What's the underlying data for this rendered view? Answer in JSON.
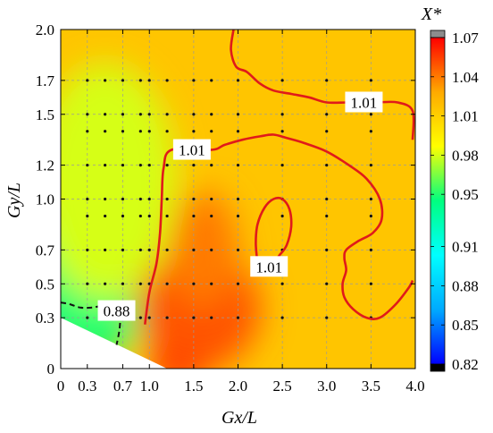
{
  "chart_data": {
    "type": "heatmap",
    "title": "",
    "xlabel": "Gx/L",
    "ylabel": "Gy/L",
    "xlim": [
      0,
      4.0
    ],
    "ylim": [
      0,
      2.0
    ],
    "x_ticks": [
      "0",
      "0.3",
      "0.7",
      "1.0",
      "1.5",
      "2.0",
      "2.5",
      "3.0",
      "3.5",
      "4.0"
    ],
    "x_tick_values": [
      0,
      0.3,
      0.7,
      1.0,
      1.5,
      2.0,
      2.5,
      3.0,
      3.5,
      4.0
    ],
    "y_ticks": [
      "0",
      "0.3",
      "0.5",
      "0.7",
      "1.0",
      "1.2",
      "1.5",
      "1.7",
      "2.0"
    ],
    "y_tick_values": [
      0,
      0.3,
      0.5,
      0.7,
      1.0,
      1.2,
      1.5,
      1.7,
      2.0
    ],
    "colorbar": {
      "label": "X*",
      "ticks": [
        "0.82",
        "0.85",
        "0.88",
        "0.91",
        "0.95",
        "0.98",
        "1.01",
        "1.04",
        "1.07"
      ],
      "tick_values": [
        0.82,
        0.85,
        0.88,
        0.91,
        0.95,
        0.98,
        1.01,
        1.04,
        1.07
      ],
      "colors": {
        "min_cap": "#000000",
        "max_cap": "#8c8c8c",
        "c0": "#0000ff",
        "c1": "#00aaff",
        "c2": "#00ffff",
        "c3": "#00ff80",
        "c4": "#ffff00",
        "c5": "#ffaa00",
        "c6": "#ff0000"
      }
    },
    "sample_grid": {
      "x": [
        0.3,
        0.5,
        0.7,
        0.9,
        1.0,
        1.2,
        1.5,
        1.7,
        2.0,
        2.5,
        3.0,
        3.5
      ],
      "y": [
        0.3,
        0.5,
        0.7,
        0.9,
        1.0,
        1.2,
        1.4,
        1.5,
        1.7
      ]
    },
    "contour_labels": [
      {
        "text": "1.01",
        "x": 3.42,
        "y": 1.57
      },
      {
        "text": "1.01",
        "x": 1.48,
        "y": 1.29
      },
      {
        "text": "1.01",
        "x": 2.35,
        "y": 0.6
      },
      {
        "text": "0.88",
        "x": 0.63,
        "y": 0.34
      }
    ],
    "contours": [
      {
        "level": 1.01,
        "style": "solid",
        "color": "#e01a1a",
        "points": [
          [
            1.95,
            2.0
          ],
          [
            1.92,
            1.88
          ],
          [
            1.98,
            1.78
          ],
          [
            2.1,
            1.75
          ],
          [
            2.25,
            1.68
          ],
          [
            2.4,
            1.64
          ],
          [
            2.6,
            1.62
          ],
          [
            2.8,
            1.6
          ],
          [
            3.0,
            1.57
          ],
          [
            3.25,
            1.57
          ],
          [
            3.55,
            1.57
          ],
          [
            3.8,
            1.57
          ],
          [
            3.97,
            1.52
          ],
          [
            3.97,
            1.35
          ]
        ]
      },
      {
        "level": 1.01,
        "style": "solid",
        "color": "#e01a1a",
        "points": [
          [
            0.95,
            0.26
          ],
          [
            1.0,
            0.45
          ],
          [
            1.08,
            0.62
          ],
          [
            1.12,
            0.8
          ],
          [
            1.14,
            1.0
          ],
          [
            1.16,
            1.18
          ],
          [
            1.25,
            1.29
          ],
          [
            1.7,
            1.29
          ],
          [
            1.85,
            1.32
          ],
          [
            2.05,
            1.35
          ],
          [
            2.25,
            1.37
          ],
          [
            2.4,
            1.38
          ],
          [
            2.55,
            1.36
          ],
          [
            2.75,
            1.33
          ],
          [
            3.0,
            1.28
          ],
          [
            3.25,
            1.2
          ],
          [
            3.45,
            1.12
          ],
          [
            3.6,
            1.0
          ],
          [
            3.62,
            0.88
          ],
          [
            3.52,
            0.8
          ],
          [
            3.35,
            0.75
          ],
          [
            3.22,
            0.7
          ],
          [
            3.2,
            0.65
          ],
          [
            3.22,
            0.58
          ],
          [
            3.18,
            0.5
          ],
          [
            3.2,
            0.42
          ],
          [
            3.3,
            0.35
          ],
          [
            3.45,
            0.3
          ],
          [
            3.6,
            0.3
          ],
          [
            3.78,
            0.38
          ],
          [
            3.93,
            0.48
          ],
          [
            3.97,
            0.52
          ]
        ]
      },
      {
        "level": 1.01,
        "style": "solid",
        "color": "#e01a1a",
        "points": [
          [
            2.22,
            0.62
          ],
          [
            2.2,
            0.74
          ],
          [
            2.22,
            0.85
          ],
          [
            2.3,
            0.95
          ],
          [
            2.4,
            1.0
          ],
          [
            2.5,
            1.0
          ],
          [
            2.58,
            0.94
          ],
          [
            2.6,
            0.84
          ],
          [
            2.55,
            0.73
          ],
          [
            2.47,
            0.67
          ],
          [
            2.38,
            0.62
          ],
          [
            2.22,
            0.62
          ]
        ]
      },
      {
        "level": 0.88,
        "style": "dashed",
        "color": "#111111",
        "points": [
          [
            0.0,
            0.39
          ],
          [
            0.1,
            0.38
          ],
          [
            0.22,
            0.36
          ],
          [
            0.35,
            0.36
          ],
          [
            0.5,
            0.37
          ],
          [
            0.64,
            0.34
          ],
          [
            0.67,
            0.3
          ],
          [
            0.66,
            0.22
          ],
          [
            0.63,
            0.14
          ]
        ]
      }
    ],
    "hot_spots": [
      {
        "x": 1.35,
        "y": 0.05,
        "rx": 0.35,
        "ry": 0.16,
        "value": 1.07
      },
      {
        "x": 1.55,
        "y": 0.35,
        "rx": 0.7,
        "ry": 0.36,
        "value": 1.05
      },
      {
        "x": 1.6,
        "y": 0.7,
        "rx": 0.4,
        "ry": 0.35,
        "value": 1.04
      }
    ],
    "cool_spots": [
      {
        "x": 0.05,
        "y": 0.25,
        "rx": 0.5,
        "ry": 0.12,
        "value": 0.83
      },
      {
        "x": 0.4,
        "y": 0.33,
        "rx": 0.5,
        "ry": 0.2,
        "value": 0.88
      },
      {
        "x": 0.35,
        "y": 0.6,
        "rx": 0.8,
        "ry": 0.55,
        "value": 0.95
      },
      {
        "x": 0.5,
        "y": 1.1,
        "rx": 0.8,
        "ry": 0.7,
        "value": 0.98
      }
    ],
    "invalid_region": [
      [
        0,
        0
      ],
      [
        0,
        0.3
      ],
      [
        1.2,
        0
      ]
    ]
  }
}
